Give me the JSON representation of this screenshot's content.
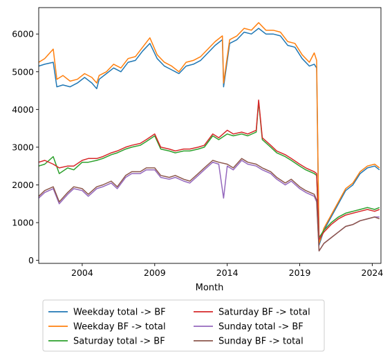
{
  "chart_data": {
    "type": "line",
    "xlabel": "Month",
    "ylabel": "",
    "title": "",
    "grid": false,
    "legend_position": "below",
    "x_tick_labels": [
      "2004",
      "2009",
      "2014",
      "2019",
      "2024"
    ],
    "x_ticks": [
      2004,
      2009,
      2014,
      2019,
      2024
    ],
    "y_tick_labels": [
      "0",
      "1000",
      "2000",
      "3000",
      "4000",
      "5000",
      "6000"
    ],
    "y_ticks": [
      0,
      1000,
      2000,
      3000,
      4000,
      5000,
      6000
    ],
    "xlim": [
      2001.0,
      2024.6
    ],
    "ylim": [
      -80,
      6700
    ],
    "series": [
      {
        "name": "Weekday total -> BF",
        "color": "#1f77b4",
        "x": [
          "2001-01",
          "2001-06",
          "2002-01",
          "2002-04",
          "2002-09",
          "2003-03",
          "2003-09",
          "2004-03",
          "2004-09",
          "2005-01",
          "2005-03",
          "2005-09",
          "2006-03",
          "2006-09",
          "2007-03",
          "2007-09",
          "2008-03",
          "2008-09",
          "2009-03",
          "2009-09",
          "2010-03",
          "2010-09",
          "2011-03",
          "2011-09",
          "2012-03",
          "2012-09",
          "2013-03",
          "2013-09",
          "2013-10",
          "2014-03",
          "2014-09",
          "2015-03",
          "2015-09",
          "2016-03",
          "2016-09",
          "2017-03",
          "2017-09",
          "2018-03",
          "2018-09",
          "2019-03",
          "2019-09",
          "2020-01",
          "2020-03",
          "2020-05",
          "2020-09",
          "2021-03",
          "2021-09",
          "2022-03",
          "2022-09",
          "2023-03",
          "2023-09",
          "2024-03",
          "2024-07"
        ],
        "y": [
          5150,
          5200,
          5250,
          4600,
          4650,
          4600,
          4700,
          4850,
          4700,
          4550,
          4800,
          4950,
          5100,
          5000,
          5250,
          5300,
          5550,
          5750,
          5350,
          5150,
          5050,
          4950,
          5150,
          5200,
          5300,
          5500,
          5700,
          5850,
          4600,
          5750,
          5850,
          6050,
          6000,
          6150,
          6000,
          6000,
          5950,
          5700,
          5650,
          5350,
          5150,
          5200,
          5100,
          400,
          800,
          1150,
          1500,
          1850,
          2000,
          2300,
          2450,
          2500,
          2400
        ]
      },
      {
        "name": "Weekday BF -> total",
        "color": "#ff7f0e",
        "x": [
          "2001-01",
          "2001-06",
          "2002-01",
          "2002-04",
          "2002-09",
          "2003-03",
          "2003-09",
          "2004-03",
          "2004-09",
          "2005-01",
          "2005-03",
          "2005-09",
          "2006-03",
          "2006-09",
          "2007-03",
          "2007-09",
          "2008-03",
          "2008-09",
          "2009-03",
          "2009-09",
          "2010-03",
          "2010-09",
          "2011-03",
          "2011-09",
          "2012-03",
          "2012-09",
          "2013-03",
          "2013-09",
          "2013-10",
          "2014-03",
          "2014-09",
          "2015-03",
          "2015-09",
          "2016-03",
          "2016-09",
          "2017-03",
          "2017-09",
          "2018-03",
          "2018-09",
          "2019-03",
          "2019-09",
          "2020-01",
          "2020-03",
          "2020-05",
          "2020-09",
          "2021-03",
          "2021-09",
          "2022-03",
          "2022-09",
          "2023-03",
          "2023-09",
          "2024-03",
          "2024-07"
        ],
        "y": [
          5250,
          5350,
          5600,
          4800,
          4900,
          4750,
          4800,
          4950,
          4850,
          4700,
          4900,
          5000,
          5200,
          5100,
          5350,
          5400,
          5650,
          5900,
          5450,
          5250,
          5150,
          5000,
          5250,
          5300,
          5400,
          5600,
          5800,
          5950,
          4700,
          5850,
          5950,
          6150,
          6100,
          6300,
          6100,
          6100,
          6050,
          5800,
          5750,
          5450,
          5250,
          5500,
          5300,
          450,
          850,
          1200,
          1550,
          1900,
          2050,
          2350,
          2500,
          2550,
          2450
        ]
      },
      {
        "name": "Saturday total -> BF",
        "color": "#2ca02c",
        "x": [
          "2001-01",
          "2001-06",
          "2002-01",
          "2002-06",
          "2003-01",
          "2003-06",
          "2004-01",
          "2004-06",
          "2005-01",
          "2005-06",
          "2006-01",
          "2006-06",
          "2007-01",
          "2007-06",
          "2008-01",
          "2008-06",
          "2009-01",
          "2009-06",
          "2010-01",
          "2010-06",
          "2011-01",
          "2011-06",
          "2012-01",
          "2012-06",
          "2013-01",
          "2013-06",
          "2014-01",
          "2014-06",
          "2015-01",
          "2015-06",
          "2016-01",
          "2016-03",
          "2016-06",
          "2017-01",
          "2017-06",
          "2018-01",
          "2018-06",
          "2019-01",
          "2019-06",
          "2020-01",
          "2020-03",
          "2020-05",
          "2020-09",
          "2021-03",
          "2021-09",
          "2022-03",
          "2022-09",
          "2023-03",
          "2023-09",
          "2024-03",
          "2024-07"
        ],
        "y": [
          2500,
          2550,
          2750,
          2300,
          2450,
          2400,
          2600,
          2600,
          2650,
          2700,
          2800,
          2850,
          2950,
          3000,
          3050,
          3150,
          3300,
          2950,
          2900,
          2850,
          2900,
          2900,
          2950,
          3000,
          3300,
          3200,
          3350,
          3300,
          3350,
          3300,
          3400,
          4200,
          3200,
          3000,
          2850,
          2750,
          2650,
          2500,
          2400,
          2300,
          2250,
          600,
          800,
          1000,
          1150,
          1250,
          1300,
          1350,
          1400,
          1350,
          1400
        ]
      },
      {
        "name": "Saturday BF -> total",
        "color": "#d62728",
        "x": [
          "2001-01",
          "2001-06",
          "2002-01",
          "2002-06",
          "2003-01",
          "2003-06",
          "2004-01",
          "2004-06",
          "2005-01",
          "2005-06",
          "2006-01",
          "2006-06",
          "2007-01",
          "2007-06",
          "2008-01",
          "2008-06",
          "2009-01",
          "2009-06",
          "2010-01",
          "2010-06",
          "2011-01",
          "2011-06",
          "2012-01",
          "2012-06",
          "2013-01",
          "2013-06",
          "2014-01",
          "2014-06",
          "2015-01",
          "2015-06",
          "2016-01",
          "2016-03",
          "2016-06",
          "2017-01",
          "2017-06",
          "2018-01",
          "2018-06",
          "2019-01",
          "2019-06",
          "2020-01",
          "2020-03",
          "2020-05",
          "2020-09",
          "2021-03",
          "2021-09",
          "2022-03",
          "2022-09",
          "2023-03",
          "2023-09",
          "2024-03",
          "2024-07"
        ],
        "y": [
          2600,
          2650,
          2550,
          2450,
          2500,
          2500,
          2650,
          2700,
          2700,
          2750,
          2850,
          2900,
          3000,
          3050,
          3100,
          3200,
          3350,
          3000,
          2950,
          2900,
          2950,
          2950,
          3000,
          3050,
          3350,
          3250,
          3450,
          3350,
          3400,
          3350,
          3450,
          4250,
          3250,
          3050,
          2900,
          2800,
          2700,
          2550,
          2450,
          2350,
          2300,
          550,
          750,
          950,
          1100,
          1200,
          1250,
          1300,
          1350,
          1300,
          1350
        ]
      },
      {
        "name": "Sunday total -> BF",
        "color": "#9467bd",
        "x": [
          "2001-01",
          "2001-06",
          "2002-01",
          "2002-06",
          "2003-01",
          "2003-06",
          "2004-01",
          "2004-06",
          "2005-01",
          "2005-06",
          "2006-01",
          "2006-06",
          "2007-01",
          "2007-06",
          "2008-01",
          "2008-06",
          "2009-01",
          "2009-06",
          "2010-01",
          "2010-06",
          "2011-01",
          "2011-06",
          "2012-01",
          "2012-06",
          "2013-01",
          "2013-06",
          "2013-10",
          "2014-01",
          "2014-06",
          "2015-01",
          "2015-06",
          "2016-01",
          "2016-06",
          "2017-01",
          "2017-06",
          "2018-01",
          "2018-06",
          "2019-01",
          "2019-06",
          "2020-01",
          "2020-03",
          "2020-05",
          "2020-09",
          "2021-03",
          "2021-09",
          "2022-03",
          "2022-09",
          "2023-03",
          "2023-09",
          "2024-03",
          "2024-07"
        ],
        "y": [
          1650,
          1800,
          1900,
          1500,
          1750,
          1900,
          1850,
          1700,
          1900,
          1950,
          2050,
          1900,
          2200,
          2300,
          2300,
          2400,
          2400,
          2200,
          2150,
          2200,
          2100,
          2050,
          2250,
          2400,
          2600,
          2550,
          1650,
          2500,
          2400,
          2650,
          2550,
          2500,
          2400,
          2300,
          2150,
          2000,
          2100,
          1900,
          1800,
          1700,
          1550,
          250,
          450,
          600,
          750,
          900,
          950,
          1050,
          1100,
          1150,
          1150
        ]
      },
      {
        "name": "Sunday BF -> total",
        "color": "#8c564b",
        "x": [
          "2001-01",
          "2001-06",
          "2002-01",
          "2002-06",
          "2003-01",
          "2003-06",
          "2004-01",
          "2004-06",
          "2005-01",
          "2005-06",
          "2006-01",
          "2006-06",
          "2007-01",
          "2007-06",
          "2008-01",
          "2008-06",
          "2009-01",
          "2009-06",
          "2010-01",
          "2010-06",
          "2011-01",
          "2011-06",
          "2012-01",
          "2012-06",
          "2013-01",
          "2013-06",
          "2014-01",
          "2014-06",
          "2015-01",
          "2015-06",
          "2016-01",
          "2016-06",
          "2017-01",
          "2017-06",
          "2018-01",
          "2018-06",
          "2019-01",
          "2019-06",
          "2020-01",
          "2020-03",
          "2020-05",
          "2020-09",
          "2021-03",
          "2021-09",
          "2022-03",
          "2022-09",
          "2023-03",
          "2023-09",
          "2024-03",
          "2024-07"
        ],
        "y": [
          1700,
          1850,
          1950,
          1550,
          1800,
          1950,
          1900,
          1750,
          1950,
          2000,
          2100,
          1950,
          2250,
          2350,
          2350,
          2450,
          2450,
          2250,
          2200,
          2250,
          2150,
          2100,
          2300,
          2450,
          2650,
          2600,
          2550,
          2450,
          2700,
          2600,
          2550,
          2450,
          2350,
          2200,
          2050,
          2150,
          1950,
          1850,
          1750,
          1600,
          250,
          450,
          600,
          750,
          900,
          950,
          1050,
          1100,
          1150,
          1100
        ]
      }
    ]
  }
}
